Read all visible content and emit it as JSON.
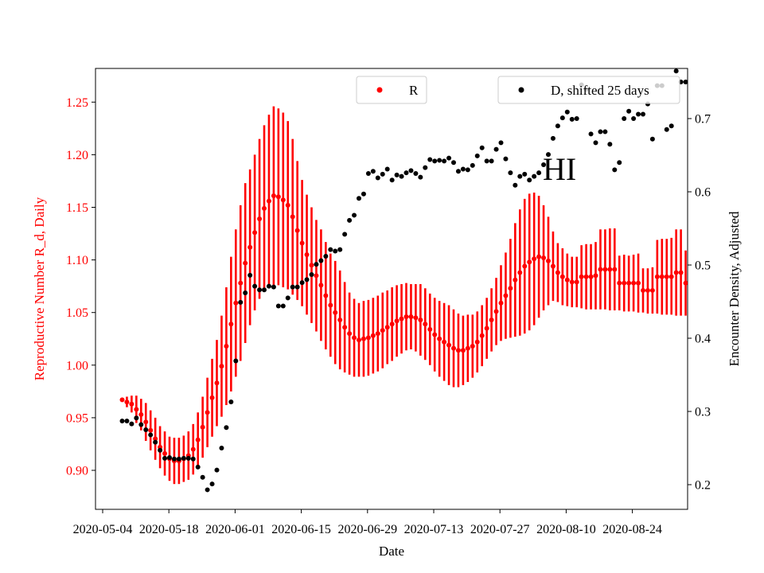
{
  "chart_data": {
    "type": "scatter",
    "xlabel": "Date",
    "y1label": "Reproductive Number R_d, Daily",
    "y2label": "Encounter Density, Adjusted",
    "x_tick_labels": [
      "2020-05-04",
      "2020-05-18",
      "2020-06-01",
      "2020-06-15",
      "2020-06-29",
      "2020-07-13",
      "2020-07-27",
      "2020-08-10",
      "2020-08-24"
    ],
    "y1_ticks": [
      "0.90",
      "0.95",
      "1.00",
      "1.05",
      "1.10",
      "1.15",
      "1.20",
      "1.25"
    ],
    "y2_ticks": [
      "0.2",
      "0.3",
      "0.4",
      "0.5",
      "0.6",
      "0.7"
    ],
    "annotation": "HI",
    "colors": {
      "r_series": "#ff0000",
      "d_series": "#000000",
      "left_axis_text": "#ff0000"
    },
    "legend_r": {
      "label": "R",
      "placement": "top-center"
    },
    "legend_d": {
      "label": "D, shifted 25 days",
      "placement": "top-right"
    },
    "x_start_date": "2020-05-06",
    "r_series": {
      "name": "R",
      "mean": [
        0.967,
        0.965,
        0.963,
        0.958,
        0.953,
        0.946,
        0.938,
        0.93,
        0.922,
        0.916,
        0.911,
        0.909,
        0.909,
        0.911,
        0.914,
        0.92,
        0.929,
        0.941,
        0.955,
        0.969,
        0.983,
        0.999,
        1.018,
        1.039,
        1.059,
        1.078,
        1.097,
        1.112,
        1.126,
        1.139,
        1.149,
        1.156,
        1.161,
        1.16,
        1.157,
        1.152,
        1.141,
        1.128,
        1.116,
        1.105,
        1.095,
        1.085,
        1.076,
        1.066,
        1.057,
        1.05,
        1.043,
        1.036,
        1.03,
        1.026,
        1.024,
        1.025,
        1.026,
        1.028,
        1.03,
        1.033,
        1.036,
        1.039,
        1.042,
        1.044,
        1.046,
        1.046,
        1.045,
        1.043,
        1.039,
        1.034,
        1.029,
        1.025,
        1.022,
        1.019,
        1.016,
        1.014,
        1.014,
        1.016,
        1.018,
        1.022,
        1.028,
        1.035,
        1.043,
        1.051,
        1.059,
        1.066,
        1.073,
        1.081,
        1.088,
        1.094,
        1.098,
        1.101,
        1.103,
        1.102,
        1.099,
        1.094,
        1.088,
        1.084,
        1.081,
        1.079,
        1.079,
        1.084,
        1.084,
        1.084,
        1.085,
        1.091,
        1.091,
        1.091,
        1.091,
        1.078,
        1.078,
        1.078,
        1.078,
        1.078,
        1.071,
        1.071,
        1.071,
        1.084,
        1.084,
        1.084,
        1.084,
        1.088,
        1.088,
        1.078,
        1.078
      ],
      "lower": [
        0.966,
        0.96,
        0.955,
        0.945,
        0.938,
        0.928,
        0.919,
        0.91,
        0.902,
        0.895,
        0.89,
        0.887,
        0.887,
        0.889,
        0.891,
        0.896,
        0.903,
        0.912,
        0.922,
        0.932,
        0.942,
        0.951,
        0.962,
        0.975,
        0.989,
        1.004,
        1.021,
        1.038,
        1.052,
        1.063,
        1.07,
        1.074,
        1.076,
        1.076,
        1.074,
        1.072,
        1.067,
        1.062,
        1.056,
        1.048,
        1.04,
        1.032,
        1.023,
        1.015,
        1.008,
        1.001,
        0.996,
        0.993,
        0.991,
        0.989,
        0.989,
        0.989,
        0.99,
        0.992,
        0.994,
        0.997,
        1.001,
        1.004,
        1.008,
        1.011,
        1.014,
        1.015,
        1.013,
        1.009,
        1.005,
        1.0,
        0.994,
        0.989,
        0.985,
        0.981,
        0.979,
        0.979,
        0.981,
        0.984,
        0.988,
        0.993,
        0.999,
        1.006,
        1.013,
        1.019,
        1.023,
        1.025,
        1.026,
        1.027,
        1.028,
        1.03,
        1.033,
        1.038,
        1.045,
        1.052,
        1.057,
        1.061,
        1.06,
        1.057,
        1.056,
        1.055,
        1.055,
        1.054,
        1.053,
        1.053,
        1.053,
        1.053,
        1.053,
        1.052,
        1.052,
        1.052,
        1.051,
        1.051,
        1.051,
        1.05,
        1.05,
        1.049,
        1.049,
        1.049,
        1.048,
        1.048,
        1.048,
        1.047,
        1.047,
        1.047,
        1.046
      ],
      "upper": [
        0.968,
        0.97,
        0.971,
        0.971,
        0.968,
        0.964,
        0.957,
        0.95,
        0.942,
        0.937,
        0.932,
        0.931,
        0.931,
        0.933,
        0.937,
        0.944,
        0.955,
        0.97,
        0.988,
        1.006,
        1.024,
        1.047,
        1.074,
        1.103,
        1.129,
        1.152,
        1.173,
        1.186,
        1.2,
        1.215,
        1.228,
        1.238,
        1.246,
        1.244,
        1.24,
        1.232,
        1.215,
        1.194,
        1.176,
        1.162,
        1.15,
        1.138,
        1.129,
        1.117,
        1.106,
        1.099,
        1.09,
        1.079,
        1.069,
        1.063,
        1.059,
        1.061,
        1.062,
        1.064,
        1.066,
        1.069,
        1.071,
        1.074,
        1.076,
        1.077,
        1.078,
        1.077,
        1.077,
        1.077,
        1.073,
        1.068,
        1.064,
        1.061,
        1.059,
        1.057,
        1.053,
        1.049,
        1.047,
        1.048,
        1.048,
        1.051,
        1.057,
        1.064,
        1.073,
        1.083,
        1.095,
        1.107,
        1.12,
        1.135,
        1.148,
        1.158,
        1.163,
        1.164,
        1.161,
        1.152,
        1.141,
        1.127,
        1.116,
        1.111,
        1.106,
        1.103,
        1.103,
        1.114,
        1.115,
        1.115,
        1.117,
        1.129,
        1.129,
        1.13,
        1.13,
        1.104,
        1.105,
        1.104,
        1.105,
        1.106,
        1.092,
        1.092,
        1.093,
        1.119,
        1.12,
        1.12,
        1.121,
        1.129,
        1.129,
        1.109,
        1.11
      ]
    },
    "d_series": {
      "name": "D, shifted 25 days",
      "values": [
        0.287,
        0.287,
        0.283,
        0.291,
        0.282,
        0.275,
        0.268,
        0.258,
        0.247,
        0.236,
        0.237,
        0.235,
        0.235,
        0.236,
        0.236,
        0.235,
        0.224,
        0.21,
        0.193,
        0.201,
        0.22,
        0.25,
        0.278,
        0.313,
        0.369,
        0.449,
        0.462,
        0.486,
        0.471,
        0.466,
        0.466,
        0.471,
        0.47,
        0.444,
        0.444,
        0.455,
        0.47,
        0.47,
        0.476,
        0.48,
        0.487,
        0.501,
        0.506,
        0.512,
        0.521,
        0.519,
        0.521,
        0.542,
        0.561,
        0.568,
        0.591,
        0.597,
        0.625,
        0.628,
        0.619,
        0.624,
        0.631,
        0.616,
        0.623,
        0.621,
        0.626,
        0.629,
        0.625,
        0.62,
        0.633,
        0.644,
        0.642,
        0.643,
        0.642,
        0.646,
        0.64,
        0.628,
        0.631,
        0.63,
        0.636,
        0.649,
        0.66,
        0.642,
        0.642,
        0.658,
        0.667,
        0.645,
        0.626,
        0.609,
        0.621,
        0.624,
        0.616,
        0.621,
        0.626,
        0.637,
        0.651,
        0.673,
        0.69,
        0.701,
        0.709,
        0.699,
        0.7,
        0.746,
        0.74,
        0.679,
        0.667,
        0.682,
        0.682,
        0.665,
        0.63,
        0.64,
        0.7,
        0.71,
        0.7,
        0.706,
        0.706,
        0.72,
        0.672,
        0.745,
        0.745,
        0.685,
        0.69,
        0.765,
        0.75,
        0.75,
        0.75
      ]
    }
  }
}
